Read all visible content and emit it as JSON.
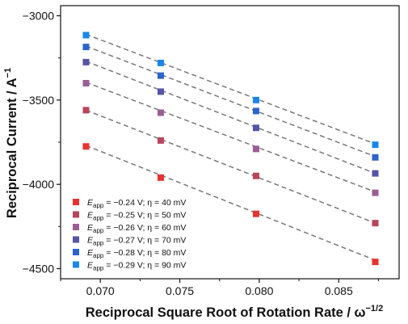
{
  "chart_data": {
    "type": "scatter",
    "title": "",
    "xlabel": {
      "main": "Reciprocal Square Root of Rotation Rate / ω",
      "sup": "−1/2"
    },
    "ylabel": {
      "main": "Reciprocal Current / A",
      "sup": "−1"
    },
    "xlim": [
      0.0675,
      0.0888
    ],
    "ylim": [
      -4560,
      -2940
    ],
    "x_ticks": [
      0.07,
      0.075,
      0.08,
      0.085
    ],
    "x_tick_labels": [
      "0.070",
      "0.075",
      "0.080",
      "0.085"
    ],
    "y_ticks": [
      -3000,
      -3500,
      -4000,
      -4500
    ],
    "y_tick_labels": [
      "−3000",
      "−3500",
      "−4000",
      "−4500"
    ],
    "grid": false,
    "legend_position": "bottom-left",
    "x": [
      0.0691,
      0.0738,
      0.0798,
      0.0873
    ],
    "series": [
      {
        "name": "E_app = −0.24 V; η = 40 mV",
        "legend": {
          "sym": "E",
          "sub": "app",
          "rest": " = −0.24 V; η = 40 mV"
        },
        "color": "#e8322f",
        "values": [
          -3775,
          -3960,
          -4175,
          -4460
        ],
        "fit": [
          -3770,
          -4450
        ]
      },
      {
        "name": "E_app = −0.25 V; η = 50 mV",
        "legend": {
          "sym": "E",
          "sub": "app",
          "rest": " = −0.25 V; η = 50 mV"
        },
        "color": "#b9455a",
        "values": [
          -3560,
          -3740,
          -3950,
          -4230
        ],
        "fit": [
          -3560,
          -4230
        ]
      },
      {
        "name": "E_app = −0.26 V; η = 60 mV",
        "legend": {
          "sym": "E",
          "sub": "app",
          "rest": " = −0.26 V; η = 60 mV"
        },
        "color": "#9b5d95",
        "values": [
          -3400,
          -3575,
          -3790,
          -4050
        ],
        "fit": [
          -3395,
          -4045
        ]
      },
      {
        "name": "E_app = −0.27 V; η = 70 mV",
        "legend": {
          "sym": "E",
          "sub": "app",
          "rest": " = −0.27 V; η = 70 mV"
        },
        "color": "#5654a6",
        "values": [
          -3275,
          -3450,
          -3665,
          -3935
        ],
        "fit": [
          -3270,
          -3935
        ]
      },
      {
        "name": "E_app = −0.28 V; η = 80 mV",
        "legend": {
          "sym": "E",
          "sub": "app",
          "rest": " = −0.28 V; η = 80 mV"
        },
        "color": "#2c63cc",
        "values": [
          -3185,
          -3355,
          -3565,
          -3840
        ],
        "fit": [
          -3180,
          -3835
        ]
      },
      {
        "name": "E_app = −0.29 V; η = 90 mV",
        "legend": {
          "sym": "E",
          "sub": "app",
          "rest": " = −0.29 V; η = 90 mV"
        },
        "color": "#1b86e8",
        "values": [
          -3115,
          -3280,
          -3500,
          -3765
        ],
        "fit": [
          -3110,
          -3760
        ]
      }
    ]
  }
}
